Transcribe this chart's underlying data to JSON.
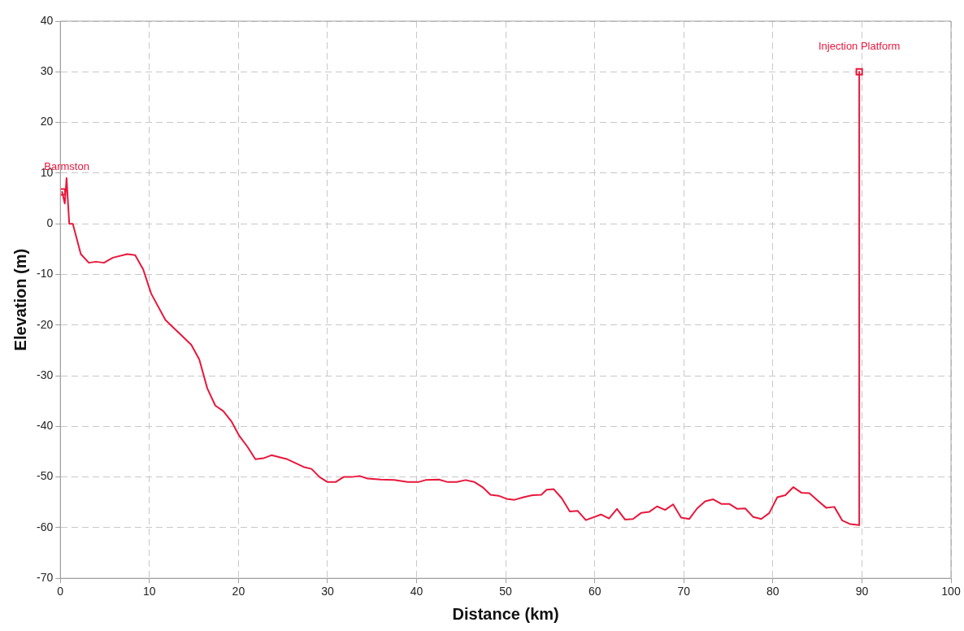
{
  "chart_data": {
    "type": "line",
    "xlabel": "Distance (km)",
    "ylabel": "Elevation (m)",
    "xlim": [
      0,
      100
    ],
    "xticks": [
      0,
      10,
      20,
      30,
      40,
      50,
      60,
      70,
      80,
      90,
      100
    ],
    "ylim": [
      -70,
      40
    ],
    "yticks": [
      -70,
      -60,
      -50,
      -40,
      -30,
      -20,
      -10,
      0,
      10,
      20,
      30,
      40
    ],
    "grid": true,
    "legend": false,
    "series": [
      {
        "type": "line",
        "color": "#e8173c",
        "marker": "none",
        "x": [
          0.2,
          0.5,
          0.7,
          1.0,
          1.4,
          2.3,
          3.2,
          4.0,
          4.9,
          5.9,
          7.5,
          8.4,
          9.3,
          10.2,
          11.8,
          14.7,
          15.6,
          16.5,
          17.4,
          18.3,
          19.2,
          20.1,
          21.0,
          21.9,
          22.8,
          23.7,
          25.5,
          27.3,
          28.2,
          29.1,
          30.0,
          30.9,
          31.8,
          32.7,
          33.6,
          34.5,
          36.0,
          37.5,
          39.0,
          40.2,
          41.0,
          42.5,
          43.5,
          44.5,
          45.5,
          46.5,
          47.4,
          48.3,
          49.2,
          50.1,
          51.0,
          52.0,
          53.0,
          54.0,
          54.6,
          55.4,
          56.3,
          57.2,
          58.1,
          59.0,
          60.7,
          61.6,
          62.5,
          63.4,
          64.3,
          65.2,
          66.1,
          67.0,
          67.9,
          68.8,
          69.7,
          70.6,
          71.5,
          72.4,
          73.3,
          74.2,
          75.1,
          76.0,
          76.9,
          77.8,
          78.7,
          79.6,
          80.5,
          81.4,
          82.3,
          83.2,
          84.1,
          85.0,
          86.0,
          86.9,
          87.8,
          88.7,
          89.7,
          89.7
        ],
        "values": [
          6.3,
          4,
          9,
          0,
          0,
          -6,
          -7.7,
          -7.5,
          -7.7,
          -6.7,
          -6,
          -6.2,
          -9,
          -13.8,
          -19,
          -23.9,
          -26.8,
          -32.5,
          -35.9,
          -37,
          -39,
          -41.9,
          -44,
          -46.5,
          -46.3,
          -45.7,
          -46.5,
          -48,
          -48.4,
          -50,
          -51,
          -51,
          -50,
          -50,
          -49.8,
          -50.3,
          -50.5,
          -50.6,
          -51,
          -51,
          -50.6,
          -50.5,
          -51,
          -51,
          -50.6,
          -51,
          -52,
          -53.5,
          -53.7,
          -54.3,
          -54.5,
          -54,
          -53.6,
          -53.5,
          -52.5,
          -52.4,
          -54.2,
          -56.8,
          -56.7,
          -58.5,
          -57.4,
          -58.2,
          -56.3,
          -58.4,
          -58.3,
          -57.1,
          -56.9,
          -55.8,
          -56.5,
          -55.4,
          -58,
          -58.3,
          -56.2,
          -54.8,
          -54.4,
          -55.3,
          -55.3,
          -56.3,
          -56.2,
          -57.9,
          -58.3,
          -57.1,
          -54,
          -53.6,
          -52,
          -53.1,
          -53.2,
          -54.6,
          -56.1,
          -55.9,
          -58.6,
          -59.3,
          -59.5,
          30
        ]
      },
      {
        "type": "scatter",
        "color": "#e8173c",
        "marker": "square",
        "x": [
          0.2,
          89.7
        ],
        "values": [
          6.3,
          30
        ]
      }
    ],
    "annotations": [
      {
        "text": "Barmston",
        "x": 0.2,
        "y": 6.3
      },
      {
        "text": "Injection Platform",
        "x": 89.7,
        "y": 30
      }
    ]
  }
}
